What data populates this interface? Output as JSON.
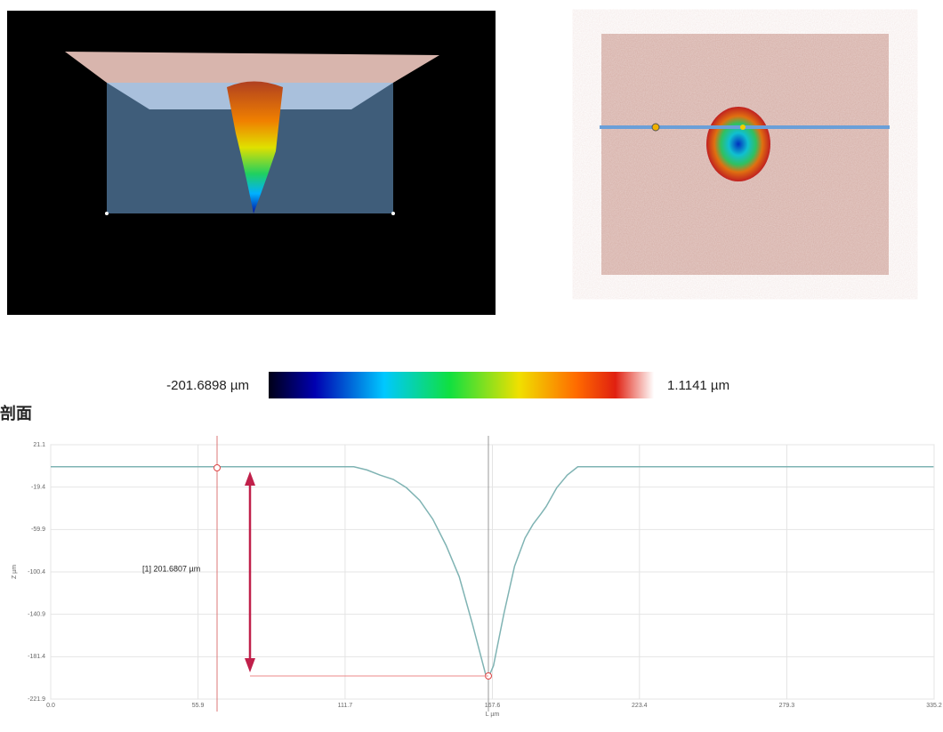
{
  "section_title": "剖面",
  "colorbar": {
    "min_label": "-201.6898 µm",
    "max_label": "1.1141 µm"
  },
  "chart_data": {
    "type": "line",
    "x": [
      0,
      20,
      40,
      60,
      80,
      100,
      115,
      120,
      125,
      130,
      135,
      140,
      145,
      150,
      155,
      160,
      165,
      166,
      168,
      172,
      176,
      180,
      183,
      186,
      188,
      192,
      196,
      200,
      220,
      240,
      260,
      280,
      300,
      320,
      335
    ],
    "values": [
      0,
      0,
      0,
      0,
      0,
      0,
      0,
      -3,
      -8,
      -12,
      -20,
      -32,
      -50,
      -75,
      -105,
      -150,
      -198,
      -201.7,
      -190,
      -140,
      -95,
      -68,
      -55,
      -45,
      -38,
      -20,
      -8,
      0,
      0,
      0,
      0,
      0,
      0,
      0,
      0
    ],
    "color": "#7fb3b3",
    "xlim": [
      0,
      335.2
    ],
    "xticks": [
      {
        "value": 0,
        "label": "0.0"
      },
      55.9,
      111.7,
      167.6,
      223.4,
      279.3,
      335.2
    ],
    "ylim": [
      -221.9,
      21.1
    ],
    "yticks": [
      21.1,
      -19.4,
      -59.9,
      -100.4,
      -140.9,
      -181.4,
      -221.9
    ],
    "xlabel": "L µm",
    "ylabel": "Z µm",
    "annotation": "[1] 201.6807 µm",
    "grid": true
  }
}
